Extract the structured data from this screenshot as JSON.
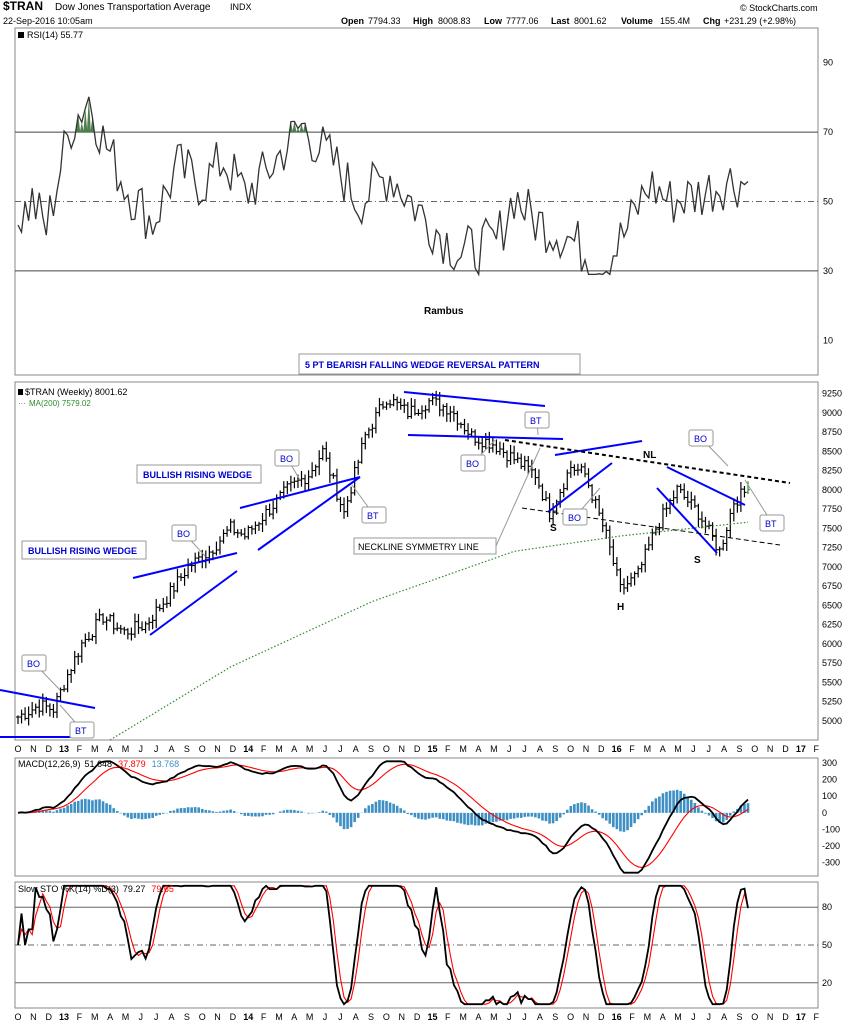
{
  "header": {
    "symbol": "$TRAN",
    "name": "Dow Jones Transportation Average",
    "exchange": "INDX",
    "datetime": "22-Sep-2016 10:05am",
    "open_label": "Open",
    "open": "7794.33",
    "high_label": "High",
    "high": "8008.83",
    "low_label": "Low",
    "low": "7777.06",
    "last_label": "Last",
    "last": "8001.62",
    "volume_label": "Volume",
    "volume": "155.4M",
    "chg_label": "Chg",
    "chg": "+231.29 (+2.98%)",
    "credit": "© StockCharts.com",
    "author": "Rambus"
  },
  "colors": {
    "bars": "#000000",
    "trendlines": "#0000ff",
    "ma200": "#2e8b2e",
    "rsi_fill": "#4f7f4f",
    "macd_signal": "#ff0000",
    "macd_hist": "#3d8fc4",
    "sto_d": "#ff0000",
    "label_text": "#0000cc"
  },
  "panels": {
    "rsi": {
      "legend": "RSI(14) 55.77"
    },
    "price": {
      "legend_main": "$TRAN (Weekly) 8001.62",
      "legend_ma": "MA(200) 7579.02"
    },
    "macd": {
      "legend_prefix": "MACD(12,26,9)",
      "macd": "51.648",
      "signal": "37.879",
      "hist": "13.768"
    },
    "sto": {
      "legend_prefix": "Slow STO %K(14) %D(3)",
      "k": "79.27",
      "d": "79.65"
    }
  },
  "annotations": {
    "bullish_wedge_1": "BULLISH RISING WEDGE",
    "bullish_wedge_2": "BULLISH RISING WEDGE",
    "bearish_wedge": "5 PT BEARISH FALLING WEDGE REVERSAL PATTERN",
    "neckline_symmetry": "NECKLINE SYMMETRY LINE",
    "bo": "BO",
    "bt": "BT",
    "nl": "NL",
    "s": "S",
    "h": "H"
  },
  "x_axis_labels": [
    "O",
    "N",
    "D",
    "13",
    "F",
    "M",
    "A",
    "M",
    "J",
    "J",
    "A",
    "S",
    "O",
    "N",
    "D",
    "14",
    "F",
    "M",
    "A",
    "M",
    "J",
    "J",
    "A",
    "S",
    "O",
    "N",
    "D",
    "15",
    "F",
    "M",
    "A",
    "M",
    "J",
    "J",
    "A",
    "S",
    "O",
    "N",
    "D",
    "16",
    "F",
    "M",
    "A",
    "M",
    "J",
    "J",
    "A",
    "S",
    "O",
    "N",
    "D",
    "17",
    "F"
  ],
  "chart_data": [
    {
      "type": "line",
      "title": "RSI(14)",
      "ylim": [
        0,
        100
      ],
      "yticks": [
        10,
        30,
        50,
        70,
        90
      ],
      "reference_lines": [
        30,
        50,
        70
      ],
      "series": [
        {
          "name": "RSI(14)",
          "last": 55.77,
          "key_points": [
            [
              0,
              45
            ],
            [
              4,
              50
            ],
            [
              8,
              42
            ],
            [
              12,
              60
            ],
            [
              15,
              72
            ],
            [
              20,
              80
            ],
            [
              24,
              68
            ],
            [
              30,
              55
            ],
            [
              38,
              44
            ],
            [
              45,
              60
            ],
            [
              52,
              55
            ],
            [
              58,
              62
            ],
            [
              64,
              52
            ],
            [
              70,
              58
            ],
            [
              80,
              72
            ],
            [
              90,
              60
            ],
            [
              96,
              50
            ],
            [
              105,
              58
            ],
            [
              115,
              45
            ],
            [
              125,
              35
            ],
            [
              135,
              38
            ],
            [
              140,
              52
            ],
            [
              145,
              45
            ],
            [
              155,
              40
            ],
            [
              165,
              31
            ],
            [
              172,
              42
            ],
            [
              178,
              55
            ],
            [
              184,
              50
            ],
            [
              192,
              52
            ],
            [
              200,
              56
            ],
            [
              204,
              55.77
            ]
          ]
        }
      ]
    },
    {
      "type": "bar",
      "title": "$TRAN (Weekly) 8001.62",
      "ylim": [
        4750,
        9400
      ],
      "yticks": [
        5000,
        5250,
        5500,
        5750,
        6000,
        6250,
        6500,
        6750,
        7000,
        7250,
        7500,
        7750,
        8000,
        8250,
        8500,
        8750,
        9000,
        9250
      ],
      "series": [
        {
          "name": "$TRAN (Weekly)",
          "last": 8001.62,
          "key_points": [
            [
              0,
              5050
            ],
            [
              6,
              5200
            ],
            [
              10,
              5150
            ],
            [
              14,
              5600
            ],
            [
              18,
              6000
            ],
            [
              24,
              6350
            ],
            [
              30,
              6150
            ],
            [
              36,
              6250
            ],
            [
              42,
              6600
            ],
            [
              48,
              7000
            ],
            [
              54,
              7200
            ],
            [
              60,
              7500
            ],
            [
              64,
              7400
            ],
            [
              70,
              7700
            ],
            [
              76,
              8000
            ],
            [
              82,
              8200
            ],
            [
              86,
              8500
            ],
            [
              92,
              7700
            ],
            [
              98,
              8700
            ],
            [
              104,
              9200
            ],
            [
              110,
              9000
            ],
            [
              116,
              9150
            ],
            [
              122,
              9050
            ],
            [
              128,
              8700
            ],
            [
              134,
              8600
            ],
            [
              140,
              8400
            ],
            [
              146,
              8200
            ],
            [
              150,
              7700
            ],
            [
              156,
              8300
            ],
            [
              160,
              8200
            ],
            [
              166,
              7400
            ],
            [
              170,
              6700
            ],
            [
              175,
              6900
            ],
            [
              180,
              7500
            ],
            [
              186,
              8000
            ],
            [
              192,
              7700
            ],
            [
              198,
              7200
            ],
            [
              202,
              7850
            ],
            [
              206,
              8001.62
            ]
          ]
        },
        {
          "name": "MA(200)",
          "last": 7579.02,
          "key_points": [
            [
              26,
              4750
            ],
            [
              60,
              5700
            ],
            [
              100,
              6550
            ],
            [
              140,
              7200
            ],
            [
              170,
              7400
            ],
            [
              206,
              7579
            ]
          ]
        }
      ]
    },
    {
      "type": "line",
      "title": "MACD(12,26,9)",
      "ylim": [
        -380,
        330
      ],
      "yticks": [
        -300,
        -200,
        -100,
        0,
        100,
        200,
        300
      ],
      "series": [
        {
          "name": "MACD",
          "last": 51.648
        },
        {
          "name": "Signal",
          "last": 37.879
        },
        {
          "name": "Histogram",
          "last": 13.768
        }
      ]
    },
    {
      "type": "line",
      "title": "Slow STO %K(14) %D(3)",
      "ylim": [
        0,
        100
      ],
      "yticks": [
        20,
        50,
        80
      ],
      "reference_lines": [
        20,
        50,
        80
      ],
      "series": [
        {
          "name": "%K",
          "last": 79.27
        },
        {
          "name": "%D",
          "last": 79.65
        }
      ]
    }
  ]
}
